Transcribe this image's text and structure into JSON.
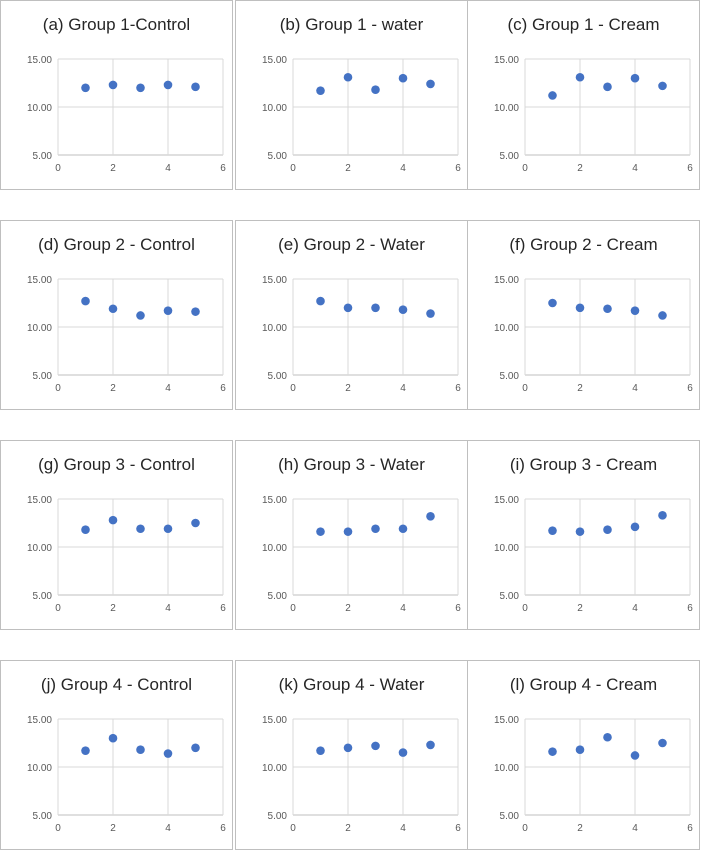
{
  "chart_data": [
    {
      "type": "scatter",
      "title": "(a) Group 1-Control",
      "x": [
        1,
        2,
        3,
        4,
        5
      ],
      "y": [
        12.0,
        12.3,
        12.0,
        12.3,
        12.1
      ],
      "xlim": [
        0,
        6
      ],
      "ylim": [
        5,
        15
      ],
      "xticks": [
        "0",
        "2",
        "4",
        "6"
      ],
      "yticks": [
        "5.00",
        "10.00",
        "15.00"
      ],
      "grid": true,
      "marker_color": "#4472c4"
    },
    {
      "type": "scatter",
      "title": "(b) Group 1 - water",
      "x": [
        1,
        2,
        3,
        4,
        5
      ],
      "y": [
        11.7,
        13.1,
        11.8,
        13.0,
        12.4
      ],
      "xlim": [
        0,
        6
      ],
      "ylim": [
        5,
        15
      ],
      "xticks": [
        "0",
        "2",
        "4",
        "6"
      ],
      "yticks": [
        "5.00",
        "10.00",
        "15.00"
      ],
      "grid": true,
      "marker_color": "#4472c4"
    },
    {
      "type": "scatter",
      "title": "(c) Group 1 - Cream",
      "x": [
        1,
        2,
        3,
        4,
        5
      ],
      "y": [
        11.2,
        13.1,
        12.1,
        13.0,
        12.2
      ],
      "xlim": [
        0,
        6
      ],
      "ylim": [
        5,
        15
      ],
      "xticks": [
        "0",
        "2",
        "4",
        "6"
      ],
      "yticks": [
        "5.00",
        "10.00",
        "15.00"
      ],
      "grid": true,
      "marker_color": "#4472c4"
    },
    {
      "type": "scatter",
      "title": "(d) Group 2 - Control",
      "x": [
        1,
        2,
        3,
        4,
        5
      ],
      "y": [
        12.7,
        11.9,
        11.2,
        11.7,
        11.6
      ],
      "xlim": [
        0,
        6
      ],
      "ylim": [
        5,
        15
      ],
      "xticks": [
        "0",
        "2",
        "4",
        "6"
      ],
      "yticks": [
        "5.00",
        "10.00",
        "15.00"
      ],
      "grid": true,
      "marker_color": "#4472c4"
    },
    {
      "type": "scatter",
      "title": "(e) Group 2 - Water",
      "x": [
        1,
        2,
        3,
        4,
        5
      ],
      "y": [
        12.7,
        12.0,
        12.0,
        11.8,
        11.4
      ],
      "xlim": [
        0,
        6
      ],
      "ylim": [
        5,
        15
      ],
      "xticks": [
        "0",
        "2",
        "4",
        "6"
      ],
      "yticks": [
        "5.00",
        "10.00",
        "15.00"
      ],
      "grid": true,
      "marker_color": "#4472c4"
    },
    {
      "type": "scatter",
      "title": "(f) Group 2 - Cream",
      "x": [
        1,
        2,
        3,
        4,
        5
      ],
      "y": [
        12.5,
        12.0,
        11.9,
        11.7,
        11.2
      ],
      "xlim": [
        0,
        6
      ],
      "ylim": [
        5,
        15
      ],
      "xticks": [
        "0",
        "2",
        "4",
        "6"
      ],
      "yticks": [
        "5.00",
        "10.00",
        "15.00"
      ],
      "grid": true,
      "marker_color": "#4472c4"
    },
    {
      "type": "scatter",
      "title": "(g) Group 3 - Control",
      "x": [
        1,
        2,
        3,
        4,
        5
      ],
      "y": [
        11.8,
        12.8,
        11.9,
        11.9,
        12.5
      ],
      "xlim": [
        0,
        6
      ],
      "ylim": [
        5,
        15
      ],
      "xticks": [
        "0",
        "2",
        "4",
        "6"
      ],
      "yticks": [
        "5.00",
        "10.00",
        "15.00"
      ],
      "grid": true,
      "marker_color": "#4472c4"
    },
    {
      "type": "scatter",
      "title": "(h) Group 3 - Water",
      "x": [
        1,
        2,
        3,
        4,
        5
      ],
      "y": [
        11.6,
        11.6,
        11.9,
        11.9,
        13.2
      ],
      "xlim": [
        0,
        6
      ],
      "ylim": [
        5,
        15
      ],
      "xticks": [
        "0",
        "2",
        "4",
        "6"
      ],
      "yticks": [
        "5.00",
        "10.00",
        "15.00"
      ],
      "grid": true,
      "marker_color": "#4472c4"
    },
    {
      "type": "scatter",
      "title": "(i) Group 3 - Cream",
      "x": [
        1,
        2,
        3,
        4,
        5
      ],
      "y": [
        11.7,
        11.6,
        11.8,
        12.1,
        13.3
      ],
      "xlim": [
        0,
        6
      ],
      "ylim": [
        5,
        15
      ],
      "xticks": [
        "0",
        "2",
        "4",
        "6"
      ],
      "yticks": [
        "5.00",
        "10.00",
        "15.00"
      ],
      "grid": true,
      "marker_color": "#4472c4"
    },
    {
      "type": "scatter",
      "title": "(j) Group 4 - Control",
      "x": [
        1,
        2,
        3,
        4,
        5
      ],
      "y": [
        11.7,
        13.0,
        11.8,
        11.4,
        12.0
      ],
      "xlim": [
        0,
        6
      ],
      "ylim": [
        5,
        15
      ],
      "xticks": [
        "0",
        "2",
        "4",
        "6"
      ],
      "yticks": [
        "5.00",
        "10.00",
        "15.00"
      ],
      "grid": true,
      "marker_color": "#4472c4"
    },
    {
      "type": "scatter",
      "title": "(k) Group 4 - Water",
      "x": [
        1,
        2,
        3,
        4,
        5
      ],
      "y": [
        11.7,
        12.0,
        12.2,
        11.5,
        12.3
      ],
      "xlim": [
        0,
        6
      ],
      "ylim": [
        5,
        15
      ],
      "xticks": [
        "0",
        "2",
        "4",
        "6"
      ],
      "yticks": [
        "5.00",
        "10.00",
        "15.00"
      ],
      "grid": true,
      "marker_color": "#4472c4"
    },
    {
      "type": "scatter",
      "title": "(l) Group 4 - Cream",
      "x": [
        1,
        2,
        3,
        4,
        5
      ],
      "y": [
        11.6,
        11.8,
        13.1,
        11.2,
        12.5
      ],
      "xlim": [
        0,
        6
      ],
      "ylim": [
        5,
        15
      ],
      "xticks": [
        "0",
        "2",
        "4",
        "6"
      ],
      "yticks": [
        "5.00",
        "10.00",
        "15.00"
      ],
      "grid": true,
      "marker_color": "#4472c4"
    }
  ]
}
